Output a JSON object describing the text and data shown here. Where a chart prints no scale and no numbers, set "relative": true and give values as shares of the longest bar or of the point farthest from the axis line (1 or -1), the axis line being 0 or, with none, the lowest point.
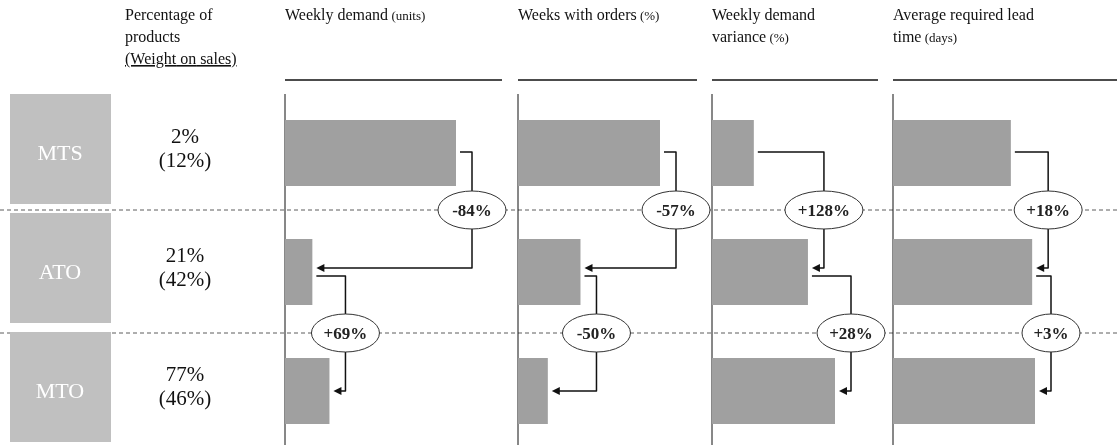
{
  "chart_data": [
    {
      "type": "other",
      "title": "Percentage of products",
      "subtitle": "(Weight on sales)",
      "categories": [
        "MTS",
        "ATO",
        "MTO"
      ],
      "annotations": [
        "2%",
        "(12%)",
        "21%",
        "(42%)",
        "77%",
        "(46%)"
      ]
    },
    {
      "type": "bar",
      "orientation": "horizontal",
      "relative": true,
      "title": "Weekly demand",
      "subtitle": "(units)",
      "categories": [
        null,
        null,
        null
      ],
      "values": [
        1,
        0.16,
        0.26
      ],
      "color": "#a0a0a0",
      "annotations": [
        "-84%",
        "+69%"
      ]
    },
    {
      "type": "bar",
      "orientation": "horizontal",
      "relative": true,
      "title": "Weeks with orders",
      "subtitle": "(%)",
      "categories": [
        null,
        null,
        null
      ],
      "values": [
        1,
        0.44,
        0.21
      ],
      "color": "#a0a0a0",
      "annotations": [
        "-57%",
        "-50%"
      ]
    },
    {
      "type": "bar",
      "orientation": "horizontal",
      "relative": true,
      "title": "Weekly demand variance",
      "subtitle": "(%)",
      "categories": [
        null,
        null,
        null
      ],
      "values": [
        0.34,
        0.78,
        1
      ],
      "color": "#a0a0a0",
      "annotations": [
        "+128%",
        "+28%"
      ]
    },
    {
      "type": "bar",
      "orientation": "horizontal",
      "relative": true,
      "title": "Average required lead time",
      "subtitle": "(days)",
      "categories": [
        null,
        null,
        null
      ],
      "values": [
        0.83,
        0.98,
        1
      ],
      "color": "#a0a0a0",
      "annotations": [
        "+18%",
        "+3%"
      ]
    }
  ]
}
